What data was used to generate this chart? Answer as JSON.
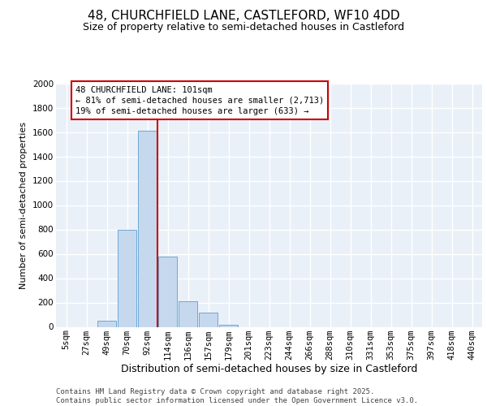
{
  "title1": "48, CHURCHFIELD LANE, CASTLEFORD, WF10 4DD",
  "title2": "Size of property relative to semi-detached houses in Castleford",
  "xlabel": "Distribution of semi-detached houses by size in Castleford",
  "ylabel": "Number of semi-detached properties",
  "categories": [
    "5sqm",
    "27sqm",
    "49sqm",
    "70sqm",
    "92sqm",
    "114sqm",
    "136sqm",
    "157sqm",
    "179sqm",
    "201sqm",
    "223sqm",
    "244sqm",
    "266sqm",
    "288sqm",
    "310sqm",
    "331sqm",
    "353sqm",
    "375sqm",
    "397sqm",
    "418sqm",
    "440sqm"
  ],
  "values": [
    0,
    0,
    50,
    800,
    1610,
    580,
    210,
    115,
    20,
    0,
    0,
    0,
    0,
    0,
    0,
    0,
    0,
    0,
    0,
    0,
    0
  ],
  "bar_color": "#c5d8ee",
  "bar_edge_color": "#6aaad4",
  "background_color": "#eaf0f8",
  "grid_color": "#ffffff",
  "red_line_x": 4.5,
  "annotation_text": "48 CHURCHFIELD LANE: 101sqm\n← 81% of semi-detached houses are smaller (2,713)\n19% of semi-detached houses are larger (633) →",
  "annotation_box_color": "#cc0000",
  "ylim": [
    0,
    2000
  ],
  "yticks": [
    0,
    200,
    400,
    600,
    800,
    1000,
    1200,
    1400,
    1600,
    1800,
    2000
  ],
  "footer": "Contains HM Land Registry data © Crown copyright and database right 2025.\nContains public sector information licensed under the Open Government Licence v3.0.",
  "title1_fontsize": 11,
  "title2_fontsize": 9,
  "xlabel_fontsize": 9,
  "ylabel_fontsize": 8,
  "tick_fontsize": 7.5,
  "annotation_fontsize": 7.5,
  "footer_fontsize": 6.5
}
